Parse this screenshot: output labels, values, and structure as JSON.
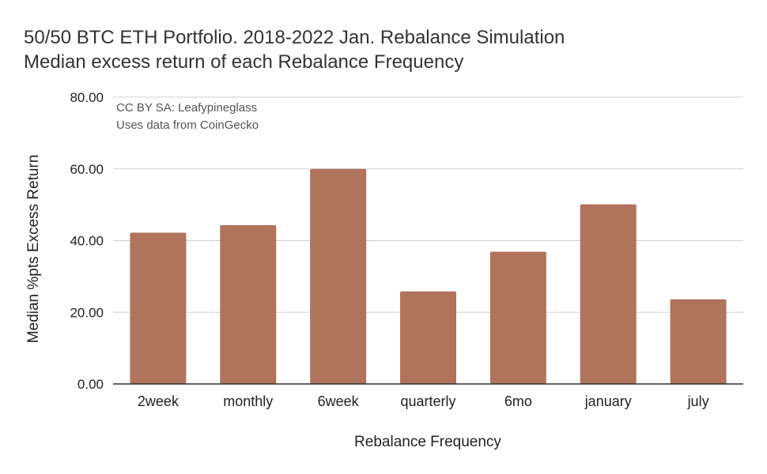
{
  "chart_data": {
    "type": "bar",
    "title": "50/50 BTC ETH Portfolio. 2018-2022 Jan. Rebalance Simulation",
    "subtitle": "Median excess return of each Rebalance Frequency",
    "annotations": [
      "CC BY SA: Leafypineglass",
      "Uses data from CoinGecko"
    ],
    "xlabel": "Rebalance Frequency",
    "ylabel": "Median %pts Excess Return",
    "categories": [
      "2week",
      "monthly",
      "6week",
      "quarterly",
      "6mo",
      "january",
      "july"
    ],
    "values": [
      42.2,
      44.3,
      60.0,
      25.8,
      36.9,
      50.1,
      23.6
    ],
    "ylim": [
      0,
      80
    ],
    "yticks": [
      "0.00",
      "20.00",
      "40.00",
      "60.00",
      "80.00"
    ],
    "grid": true,
    "legend": "none",
    "bar_color": "#b0735c"
  }
}
